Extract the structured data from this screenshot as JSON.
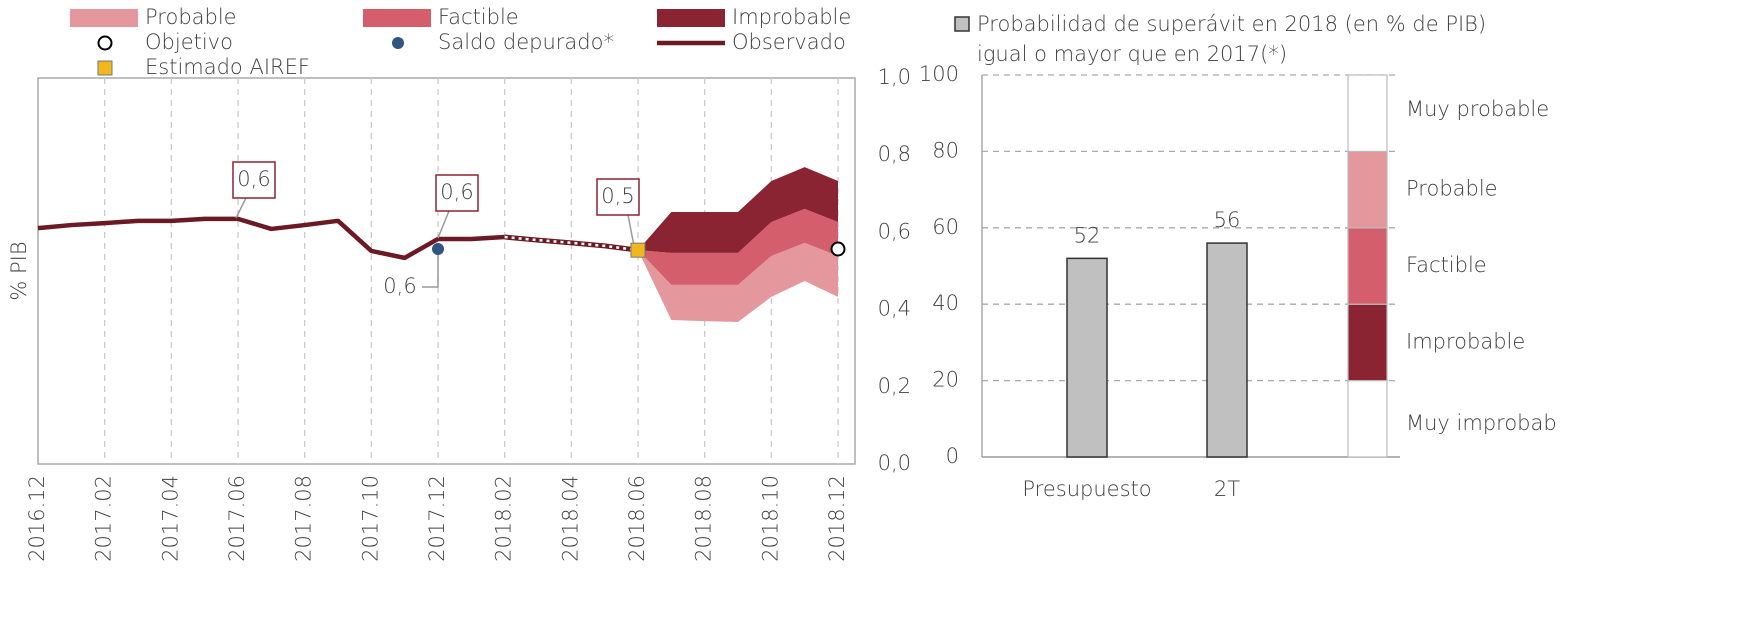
{
  "chart_data": [
    {
      "type": "fan",
      "ylabel": "% PIB",
      "categories": [
        "2016.12",
        null,
        "2017.02",
        null,
        "2017.04",
        null,
        "2017.06",
        null,
        "2017.08",
        null,
        "2017.10",
        null,
        "2017.12",
        null,
        "2018.02",
        null,
        "2018.04",
        null,
        "2018.06",
        null,
        "2018.08",
        null,
        "2018.10",
        null,
        "2018.12"
      ],
      "ylim": [
        0,
        1
      ],
      "yticks": [
        {
          "value": 0,
          "label": "0,0"
        },
        {
          "value": 0.2,
          "label": "0,2"
        },
        {
          "value": 0.4,
          "label": "0,4"
        },
        {
          "value": 0.6,
          "label": "0,6"
        },
        {
          "value": 0.8,
          "label": "0,8"
        },
        {
          "value": 1,
          "label": "1,0"
        }
      ],
      "grid": true,
      "series": [
        {
          "name": "Observado",
          "color": "#6b1a24",
          "style": "solid",
          "values": [
            0.611,
            0.619,
            0.624,
            0.63,
            0.63,
            0.635,
            0.635,
            0.609,
            0.619,
            0.63,
            0.552,
            0.534,
            0.583,
            0.583,
            0.588,
            null,
            null,
            null,
            null,
            null,
            null,
            null,
            null,
            null,
            null
          ]
        },
        {
          "color": "#6b1a24",
          "style": "dotted",
          "values": [
            null,
            null,
            null,
            null,
            null,
            null,
            null,
            null,
            null,
            null,
            null,
            null,
            null,
            null,
            0.588,
            0.58,
            0.573,
            0.565,
            0.554,
            null,
            null,
            null,
            null,
            null,
            null
          ]
        }
      ],
      "bands": [
        {
          "name": "Probable",
          "color": "#e5979e",
          "upper": [
            null,
            null,
            null,
            null,
            null,
            null,
            null,
            null,
            null,
            null,
            null,
            null,
            null,
            null,
            null,
            null,
            null,
            null,
            0.554,
            0.464,
            0.464,
            0.464,
            0.539,
            0.573,
            0.539
          ],
          "lower": [
            null,
            null,
            null,
            null,
            null,
            null,
            null,
            null,
            null,
            null,
            null,
            null,
            null,
            null,
            null,
            null,
            null,
            null,
            0.554,
            0.373,
            0.37,
            0.368,
            0.433,
            0.474,
            0.433
          ]
        },
        {
          "name": "Factible",
          "color": "#d55e6c",
          "upper": [
            null,
            null,
            null,
            null,
            null,
            null,
            null,
            null,
            null,
            null,
            null,
            null,
            null,
            null,
            null,
            null,
            null,
            null,
            0.554,
            0.547,
            0.547,
            0.547,
            0.627,
            0.661,
            0.627
          ],
          "lower": [
            null,
            null,
            null,
            null,
            null,
            null,
            null,
            null,
            null,
            null,
            null,
            null,
            null,
            null,
            null,
            null,
            null,
            null,
            0.554,
            0.464,
            0.464,
            0.464,
            0.539,
            0.573,
            0.539
          ]
        },
        {
          "name": "Improbable",
          "color": "#8b2432",
          "upper": [
            null,
            null,
            null,
            null,
            null,
            null,
            null,
            null,
            null,
            null,
            null,
            null,
            null,
            null,
            null,
            null,
            null,
            null,
            0.554,
            0.653,
            0.653,
            0.653,
            0.733,
            0.769,
            0.733
          ],
          "lower": [
            null,
            null,
            null,
            null,
            null,
            null,
            null,
            null,
            null,
            null,
            null,
            null,
            null,
            null,
            null,
            null,
            null,
            null,
            0.554,
            0.547,
            0.547,
            0.547,
            0.627,
            0.661,
            0.627
          ]
        }
      ],
      "points": [
        {
          "name": "Objetivo",
          "color": "#ffffff",
          "shape": "circle",
          "values": [
            null,
            null,
            null,
            null,
            null,
            null,
            null,
            null,
            null,
            null,
            null,
            null,
            null,
            null,
            null,
            null,
            null,
            null,
            null,
            null,
            null,
            null,
            null,
            null,
            0.557
          ]
        },
        {
          "name": "Saldo depurado*",
          "color": "#2f5580",
          "shape": "dot",
          "values": [
            null,
            null,
            null,
            null,
            null,
            null,
            null,
            null,
            null,
            null,
            null,
            null,
            0.557,
            null,
            null,
            null,
            null,
            null,
            null,
            null,
            null,
            null,
            null,
            null,
            null
          ]
        },
        {
          "name": "Estimado AIREF",
          "color": "#f2b71c",
          "shape": "square",
          "values": [
            null,
            null,
            null,
            null,
            null,
            null,
            null,
            null,
            null,
            null,
            null,
            null,
            null,
            null,
            null,
            null,
            null,
            null,
            0.554,
            null,
            null,
            null,
            null,
            null,
            null
          ]
        }
      ],
      "annotations": [
        "0,6",
        "0,6",
        "0,5",
        "0,6"
      ]
    },
    {
      "type": "bar",
      "legend": [
        "Probabilidad de superávit en 2018 (en % de PIB)",
        "igual o mayor que en 2017(*)"
      ],
      "categories": [
        "Presupuesto",
        "2T"
      ],
      "values": [
        52,
        56
      ],
      "color": "#c0c0c0",
      "ylim": [
        0,
        100
      ],
      "yticks": [
        0,
        20,
        40,
        60,
        80,
        100
      ],
      "grid": true,
      "scale": [
        {
          "label": "Muy improbab",
          "value": 20,
          "color": "#ffffff"
        },
        {
          "label": "Improbable",
          "value": 20,
          "color": "#8b2432"
        },
        {
          "label": "Factible",
          "value": 20,
          "color": "#d55e6c"
        },
        {
          "label": "Probable",
          "value": 20,
          "color": "#e5979e"
        },
        {
          "label": "Muy probable",
          "value": 20,
          "color": "#ffffff"
        }
      ]
    }
  ]
}
